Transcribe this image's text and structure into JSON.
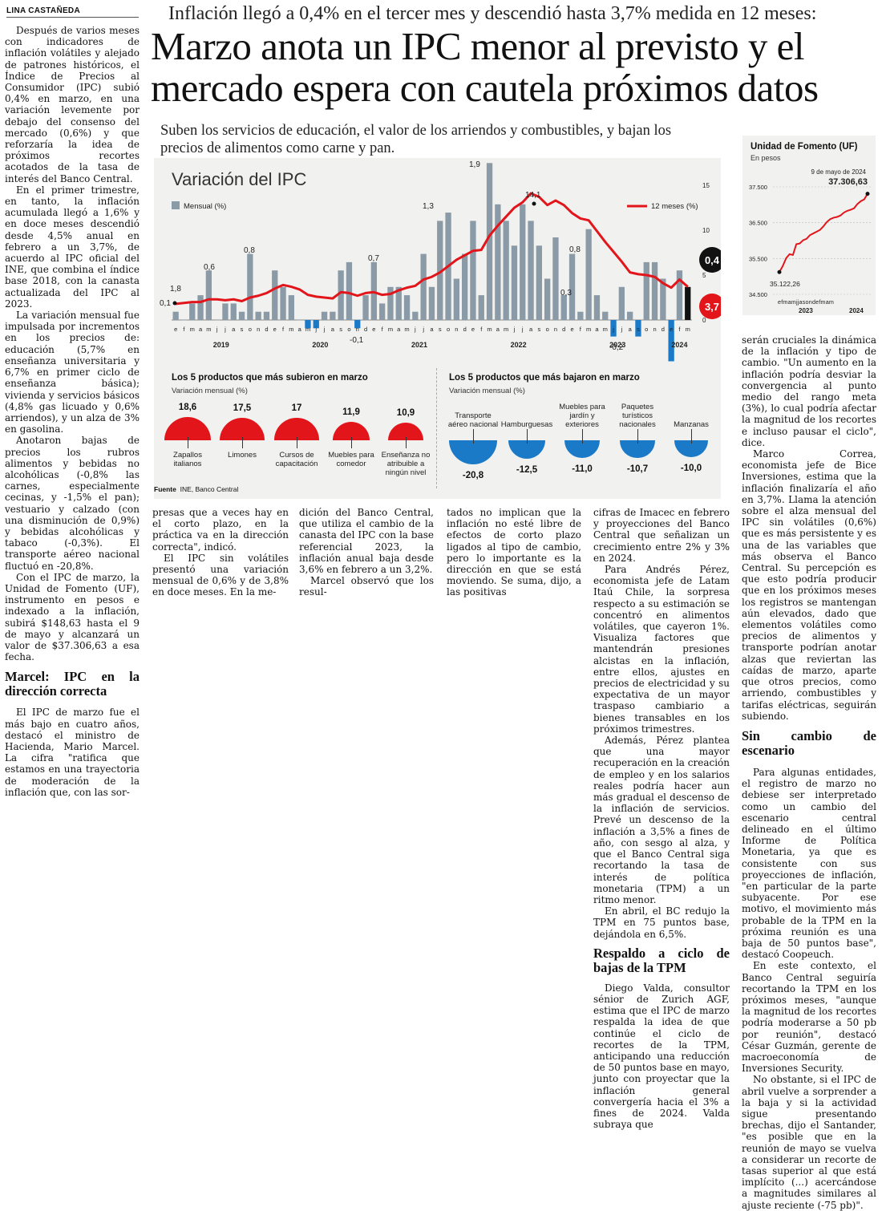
{
  "byline": "LINA CASTAÑEDA",
  "kicker": "Inflación llegó a 0,4% en el tercer mes y descendió hasta 3,7% medida en 12 meses:",
  "headline": [
    "Marzo anota un IPC menor al previsto y el",
    "mercado espera con cautela próximos datos"
  ],
  "deck": [
    "Suben los servicios de educación, el valor de los arriendos y combustibles, y bajan los",
    "precios de alimentos como carne y pan."
  ],
  "col1": {
    "paragraphs": [
      "Después de varios meses con indicadores de inflación volátiles y alejado de patrones históricos, el Índice de Precios al Consumidor (IPC) subió 0,4% en marzo, en una variación levemente por debajo del consenso del mercado (0,6%) y que reforzaría la idea de próximos recortes acotados de la tasa de interés del Banco Central.",
      "En el primer trimestre, en tanto, la inflación acumulada llegó a 1,6% y en doce meses descendió desde 4,5% anual en febrero a un 3,7%, de acuerdo al IPC oficial del INE, que combina el índice base 2018, con la canasta actualizada del IPC al 2023.",
      "La variación mensual fue impulsada por incrementos en los precios de: educación (5,7% en enseñanza universitaria y 6,7% en primer ciclo de enseñanza básica); vivienda y servicios básicos (4,8% gas licuado y 0,6% arriendos), y un alza de 3% en gasolina.",
      "Anotaron bajas de precios los rubros alimentos y bebidas no alcohólicas (-0,8% las carnes, especialmente cecinas, y -1,5% el pan); vestuario y calzado (con una disminución de 0,9%) y bebidas alcohólicas y tabaco (-0,3%). El transporte aéreo nacional fluctuó en -20,8%.",
      "Con el IPC de marzo, la Unidad de Fomento (UF), instrumento en pesos e indexado a la inflación, subirá $148,63 hasta el 9 de mayo y alcanzará un valor de $37.306,63 a esa fecha."
    ],
    "subhead": "Marcel: IPC en la dirección correcta",
    "paragraphs2": [
      "El IPC de marzo fue el más bajo en cuatro años, destacó el ministro de Hacienda, Mario Marcel. La cifra \"ratifica que estamos en una trayectoria de moderación de la inflación que, con las sor-"
    ]
  },
  "col2": [
    "presas que a veces hay en el corto plazo, en la práctica va en la dirección correcta\", indicó.",
    "El IPC sin volátiles presentó una variación mensual de 0,6% y de 3,8% en doce meses. En la me-"
  ],
  "col3": [
    "dición del Banco Central, que utiliza el cambio de la canasta del IPC con la base referencial 2023, la inflación anual baja desde 3,6% en febrero a un 3,2%.",
    "Marcel observó que los resul-"
  ],
  "col4": [
    "tados no implican que la inflación no esté libre de efectos de corto plazo ligados al tipo de cambio, pero lo importante es la dirección en que se está moviendo. Se suma, dijo, a las positivas"
  ],
  "col5": {
    "p1": [
      "cifras de Imacec en febrero y proyecciones del Banco Central que señalizan un crecimiento entre 2% y 3% en 2024.",
      "Para Andrés Pérez, economista jefe de Latam Itaú Chile, la sorpresa respecto a su estimación se concentró en alimentos volátiles, que cayeron 1%. Visualiza factores que mantendrán presiones alcistas en la inflación, entre ellos, ajustes en precios de electricidad y su expectativa de un mayor traspaso cambiario a bienes transables en los próximos trimestres.",
      "Además, Pérez plantea que una mayor recuperación en la creación de empleo y en los salarios reales podría hacer aun más gradual el descenso de la inflación de servicios. Prevé un descenso de la inflación a 3,5% a fines de año, con sesgo al alza, y que el Banco Central siga recortando la tasa de interés de política monetaria (TPM) a un ritmo menor.",
      "En abril, el BC redujo la TPM en 75 puntos base, dejándola en 6,5%."
    ],
    "subhead": "Respaldo a ciclo de bajas de la TPM",
    "p2": [
      "Diego Valda, consultor sénior de Zurich AGF, estima que el IPC de marzo respalda la idea de que continúe el ciclo de recortes de la TPM, anticipando una reducción de 50 puntos base en mayo, junto con proyectar que la inflación general convergería hacia el 3% a fines de 2024. Valda subraya que"
    ]
  },
  "col6": {
    "p1": [
      "serán cruciales la dinámica de la inflación y tipo de cambio. \"Un aumento en la inflación podría desviar la convergencia al punto medio del rango meta (3%), lo cual podría afectar la magnitud de los recortes e incluso pausar el ciclo\", dice.",
      "Marco Correa, economista jefe de Bice Inversiones, estima que la inflación finalizaría el año en 3,7%. Llama la atención sobre el alza mensual del IPC sin volátiles (0,6%) que es más persistente y es una de las variables que más observa el Banco Central. Su percepción es que esto podría producir que en los próximos meses los registros se mantengan aún elevados, dado que elementos volátiles como precios de alimentos y transporte podrían anotar alzas que reviertan las caídas de marzo, aparte que otros precios, como arriendo, combustibles y tarifas eléctricas, seguirán subiendo."
    ],
    "subhead": "Sin cambio de escenario",
    "p2": [
      "Para algunas entidades, el registro de marzo no debiese ser interpretado como un cambio del escenario central delineado en el último Informe de Política Monetaria, ya que es consistente con sus proyecciones de inflación, \"en particular de la parte subyacente. Por ese motivo, el movimiento más probable de la TPM en la próxima reunión es una baja de 50 puntos base\", destacó Coopeuch.",
      "En este contexto, el Banco Central seguiría recortando la TPM en los próximos meses, \"aunque la magnitud de los recortes podría moderarse a 50 pb por reunión\", destacó César Guzmán, gerente de macroeconomía de Inversiones Security.",
      "No obstante, si el IPC de abril vuelve a sorprender a la baja y si la actividad sigue presentando brechas, dijo el Santander, \"es posible que en la reunión de mayo se vuelva a considerar un recorte de tasas superior al que está implícito (...) acercándose a magnitudes similares al ajuste reciente (-75 pb)\"."
    ]
  },
  "chart_data": [
    {
      "type": "bar",
      "title": "Variación del IPC",
      "legend": [
        "Mensual (%)",
        "12 meses (%)"
      ],
      "right_axis_ticks": [
        "15",
        "10",
        "5",
        "0"
      ],
      "month_labels": [
        "e",
        "f",
        "m",
        "a",
        "m",
        "j",
        "j",
        "a",
        "s",
        "o",
        "n",
        "d",
        "e",
        "f",
        "m",
        "a",
        "m",
        "j",
        "j",
        "a",
        "s",
        "o",
        "n",
        "d",
        "e",
        "f",
        "m",
        "a",
        "m",
        "j",
        "j",
        "a",
        "s",
        "o",
        "n",
        "d",
        "e",
        "f",
        "m",
        "a",
        "m",
        "j",
        "j",
        "a",
        "s",
        "o",
        "n",
        "d",
        "e",
        "f",
        "m",
        "a",
        "m",
        "j",
        "j",
        "a",
        "s",
        "o",
        "n",
        "d",
        "e",
        "f",
        "m"
      ],
      "years": [
        "2019",
        "2020",
        "2021",
        "2022",
        "2023",
        "2024"
      ],
      "monthly": [
        0.1,
        0.0,
        0.2,
        0.3,
        0.6,
        0.0,
        0.2,
        0.2,
        0.1,
        0.8,
        0.1,
        0.1,
        0.6,
        0.4,
        0.3,
        0.0,
        -0.1,
        -0.1,
        0.1,
        0.1,
        0.6,
        0.7,
        -0.1,
        0.3,
        0.7,
        0.2,
        0.4,
        0.4,
        0.3,
        0.1,
        0.8,
        0.4,
        1.2,
        1.3,
        0.5,
        0.8,
        1.2,
        0.3,
        1.9,
        1.4,
        1.2,
        0.9,
        1.4,
        1.2,
        0.9,
        0.5,
        1.0,
        0.3,
        0.8,
        0.1,
        1.1,
        0.3,
        0.1,
        -0.2,
        0.4,
        0.1,
        -0.2,
        0.7,
        0.7,
        0.5,
        -0.5,
        0.6,
        0.4
      ],
      "annual": [
        1.8,
        1.9,
        2.0,
        2.0,
        2.3,
        2.3,
        2.2,
        2.3,
        2.1,
        2.5,
        2.7,
        3.0,
        3.5,
        3.9,
        3.7,
        3.4,
        2.8,
        2.6,
        2.5,
        2.4,
        3.1,
        3.0,
        2.7,
        3.0,
        3.1,
        2.8,
        2.9,
        3.3,
        3.6,
        3.8,
        4.5,
        4.8,
        5.3,
        6.0,
        6.7,
        7.2,
        7.7,
        7.8,
        9.4,
        10.5,
        11.5,
        12.5,
        13.1,
        14.1,
        13.7,
        12.8,
        13.3,
        12.8,
        11.9,
        11.3,
        11.1,
        9.9,
        8.7,
        7.6,
        6.5,
        5.3,
        5.1,
        5.0,
        4.8,
        4.1,
        3.6,
        4.5,
        3.7
      ],
      "labels": {
        "m1": "1,8",
        "m2": "0,1",
        "m3": "0,6",
        "m4": "0,8",
        "m5": "0,7",
        "m6": "1,3",
        "m7": "1,9",
        "m8": "14,1",
        "m9": "0,8",
        "m10": "0,3",
        "m11": "-0,2",
        "m12": "-0,5",
        "m13": "0,4",
        "m14": "3,7",
        "m15": "-0,1"
      }
    },
    {
      "type": "line",
      "title": "Unidad de Fomento (UF)",
      "subtitle": "En pesos",
      "yticks": [
        "37.500",
        "36.500",
        "35.500",
        "34.500"
      ],
      "ylim": [
        34500,
        37500
      ],
      "values": [
        35122.26,
        35290,
        35510,
        35620,
        35600,
        35900,
        35920,
        36010,
        36050,
        36150,
        36200,
        36250,
        36300,
        36400,
        36520,
        36600,
        36640,
        36660,
        36700,
        36780,
        36830,
        36860,
        36900,
        37020,
        37100,
        37150,
        37306.63
      ],
      "start_label": "35.122,26",
      "end_date": "9 de mayo de 2024",
      "end_label": "37.306,63",
      "month_letters": "efmamjjasondefmam",
      "years": [
        "2023",
        "2024"
      ]
    }
  ],
  "top_products": {
    "title": "Los 5 productos que más subieron en marzo",
    "subtitle": "Variación mensual (%)",
    "items": [
      {
        "value": "18,6",
        "label": "Zapallos italianos",
        "v": 18.6
      },
      {
        "value": "17,5",
        "label": "Limones",
        "v": 17.5
      },
      {
        "value": "17",
        "label": "Cursos de capacitación",
        "v": 17
      },
      {
        "value": "11,9",
        "label": "Muebles para comedor",
        "v": 11.9
      },
      {
        "value": "10,9",
        "label": "Enseñanza no atribuible a ningún nivel",
        "v": 10.9
      }
    ]
  },
  "bottom_products": {
    "title": "Los 5 productos que más bajaron en marzo",
    "subtitle": "Variación mensual (%)",
    "items": [
      {
        "value": "-20,8",
        "label": "Transporte aéreo nacional",
        "v": 20.8
      },
      {
        "value": "-12,5",
        "label": "Hamburguesas",
        "v": 12.5
      },
      {
        "value": "-11,0",
        "label": "Muebles para jardín y exteriores",
        "v": 11.0
      },
      {
        "value": "-10,7",
        "label": "Paquetes turísticos nacionales",
        "v": 10.7
      },
      {
        "value": "-10,0",
        "label": "Manzanas",
        "v": 10.0
      }
    ]
  },
  "source": {
    "label": "Fuente",
    "text": "INE, Banco Central"
  },
  "colors": {
    "bar": "#8a9aa6",
    "negative": "#1a7ac8",
    "line": "#e2151a",
    "up": "#e2151a",
    "down": "#1a7ac8"
  }
}
